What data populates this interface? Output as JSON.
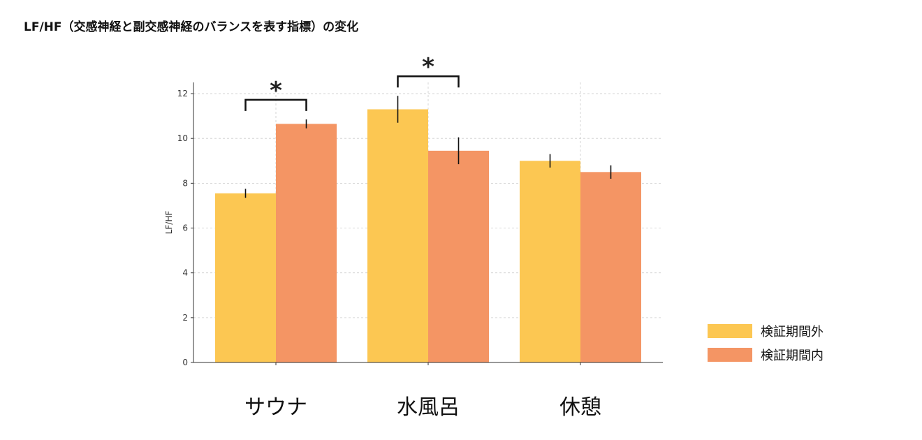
{
  "chart_data": {
    "type": "bar",
    "title": "LF/HF（交感神経と副交感神経のバランスを表す指標）の変化",
    "ylabel": "LF/HF",
    "xlabel": "",
    "categories": [
      "サウナ",
      "水風呂",
      "休憩"
    ],
    "series": [
      {
        "name": "検証期間外",
        "color": "#FCC752",
        "values": [
          7.55,
          11.3,
          9.0
        ],
        "errors": [
          0.2,
          0.6,
          0.3
        ]
      },
      {
        "name": "検証期間内",
        "color": "#F49564",
        "values": [
          10.65,
          9.45,
          8.5
        ],
        "errors": [
          0.2,
          0.6,
          0.3
        ]
      }
    ],
    "ylim": [
      0,
      12.5
    ],
    "yticks": [
      0,
      2,
      4,
      6,
      8,
      10,
      12
    ],
    "grid": true,
    "legend_position": "right",
    "significance": [
      {
        "category_index": 0,
        "mark": "*"
      },
      {
        "category_index": 1,
        "mark": "*"
      }
    ]
  }
}
